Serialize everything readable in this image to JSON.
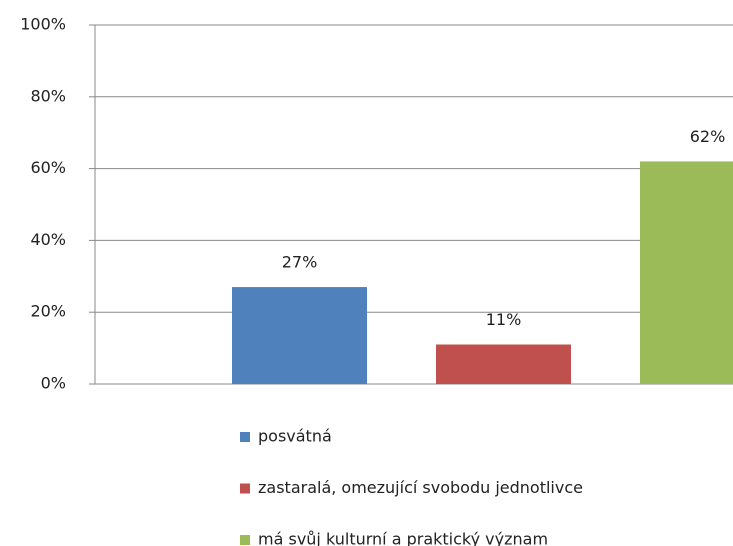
{
  "chart_data": {
    "type": "bar",
    "categories": [
      null
    ],
    "series": [
      {
        "name": "posvátná",
        "color": "#4f81bd",
        "values": [
          27
        ],
        "value_labels": [
          "27%"
        ]
      },
      {
        "name": "zastaralá, omezující svobodu jednotlivce",
        "color": "#c0504d",
        "values": [
          11
        ],
        "value_labels": [
          "11%"
        ]
      },
      {
        "name": "má svůj kulturní a praktický význam",
        "color": "#9bbb59",
        "values": [
          62
        ],
        "value_labels": [
          "62%"
        ]
      }
    ],
    "ylim": [
      0,
      100
    ],
    "yticks": [
      {
        "value": 0,
        "label": "0%"
      },
      {
        "value": 20,
        "label": "20%"
      },
      {
        "value": 40,
        "label": "40%"
      },
      {
        "value": 60,
        "label": "60%"
      },
      {
        "value": 80,
        "label": "80%"
      },
      {
        "value": 100,
        "label": "100%"
      }
    ],
    "grid": true,
    "legend": "bottom"
  }
}
